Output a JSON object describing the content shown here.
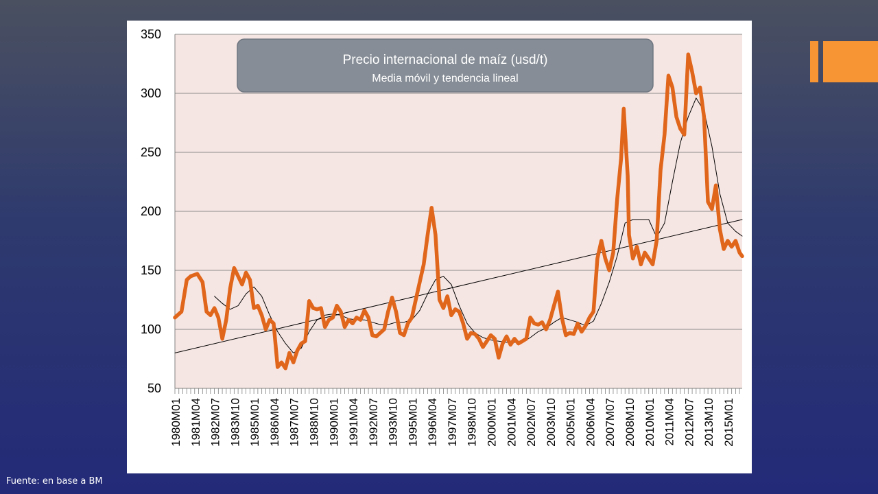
{
  "slide": {
    "source_note": "Fuente: en base a BM",
    "accent_color": "#f79433"
  },
  "chart_data": {
    "type": "line",
    "title": "Precio internacional de maíz (usd/t)",
    "subtitle": "Media móvil y tendencia lineal",
    "ylim": [
      50,
      350
    ],
    "yticks": [
      50,
      100,
      150,
      200,
      250,
      300,
      350
    ],
    "grid": true,
    "colors": {
      "price": "#e0661c",
      "moving_average": "#000000",
      "trend": "#000000",
      "plot_bg": "#f6e6e3"
    },
    "x_tick_labels": [
      "1980M01",
      "1981M04",
      "1982M07",
      "1983M10",
      "1985M01",
      "1986M04",
      "1987M07",
      "1988M10",
      "1990M01",
      "1991M04",
      "1992M07",
      "1993M10",
      "1995M01",
      "1996M04",
      "1997M07",
      "1998M10",
      "2000M01",
      "2001M04",
      "2002M07",
      "2003M10",
      "2005M01",
      "2006M04",
      "2007M07",
      "2008M10",
      "2010M01",
      "2011M04",
      "2012M07",
      "2013M10",
      "2015M01"
    ],
    "x_range": [
      "1980M01",
      "2015M12"
    ],
    "series": [
      {
        "key": "price",
        "points": [
          [
            "1980M01",
            110
          ],
          [
            "1980M06",
            115
          ],
          [
            "1980M10",
            142
          ],
          [
            "1981M01",
            145
          ],
          [
            "1981M06",
            147
          ],
          [
            "1981M10",
            140
          ],
          [
            "1982M01",
            115
          ],
          [
            "1982M04",
            112
          ],
          [
            "1982M07",
            118
          ],
          [
            "1982M10",
            110
          ],
          [
            "1983M01",
            92
          ],
          [
            "1983M04",
            108
          ],
          [
            "1983M07",
            135
          ],
          [
            "1983M10",
            152
          ],
          [
            "1984M01",
            145
          ],
          [
            "1984M04",
            138
          ],
          [
            "1984M07",
            148
          ],
          [
            "1984M10",
            142
          ],
          [
            "1985M01",
            118
          ],
          [
            "1985M04",
            120
          ],
          [
            "1985M07",
            112
          ],
          [
            "1985M10",
            100
          ],
          [
            "1986M01",
            108
          ],
          [
            "1986M04",
            105
          ],
          [
            "1986M07",
            68
          ],
          [
            "1986M10",
            72
          ],
          [
            "1987M01",
            67
          ],
          [
            "1987M04",
            80
          ],
          [
            "1987M07",
            72
          ],
          [
            "1987M10",
            82
          ],
          [
            "1988M01",
            88
          ],
          [
            "1988M04",
            90
          ],
          [
            "1988M07",
            124
          ],
          [
            "1988M10",
            118
          ],
          [
            "1989M01",
            117
          ],
          [
            "1989M04",
            118
          ],
          [
            "1989M07",
            102
          ],
          [
            "1989M10",
            108
          ],
          [
            "1990M01",
            110
          ],
          [
            "1990M04",
            120
          ],
          [
            "1990M07",
            115
          ],
          [
            "1990M10",
            102
          ],
          [
            "1991M01",
            108
          ],
          [
            "1991M04",
            105
          ],
          [
            "1991M07",
            110
          ],
          [
            "1991M10",
            108
          ],
          [
            "1992M01",
            116
          ],
          [
            "1992M04",
            110
          ],
          [
            "1992M07",
            95
          ],
          [
            "1992M10",
            94
          ],
          [
            "1993M01",
            97
          ],
          [
            "1993M04",
            100
          ],
          [
            "1993M07",
            115
          ],
          [
            "1993M10",
            127
          ],
          [
            "1994M01",
            115
          ],
          [
            "1994M04",
            97
          ],
          [
            "1994M07",
            95
          ],
          [
            "1994M10",
            105
          ],
          [
            "1995M01",
            110
          ],
          [
            "1995M04",
            125
          ],
          [
            "1995M07",
            140
          ],
          [
            "1995M10",
            155
          ],
          [
            "1996M01",
            180
          ],
          [
            "1996M04",
            203
          ],
          [
            "1996M07",
            180
          ],
          [
            "1996M10",
            125
          ],
          [
            "1997M01",
            118
          ],
          [
            "1997M04",
            128
          ],
          [
            "1997M07",
            112
          ],
          [
            "1997M10",
            117
          ],
          [
            "1998M01",
            115
          ],
          [
            "1998M04",
            105
          ],
          [
            "1998M07",
            92
          ],
          [
            "1998M10",
            97
          ],
          [
            "1999M01",
            96
          ],
          [
            "1999M04",
            92
          ],
          [
            "1999M07",
            85
          ],
          [
            "1999M10",
            90
          ],
          [
            "2000M01",
            95
          ],
          [
            "2000M04",
            92
          ],
          [
            "2000M07",
            76
          ],
          [
            "2000M10",
            88
          ],
          [
            "2001M01",
            94
          ],
          [
            "2001M04",
            87
          ],
          [
            "2001M07",
            92
          ],
          [
            "2001M10",
            88
          ],
          [
            "2002M01",
            90
          ],
          [
            "2002M04",
            92
          ],
          [
            "2002M07",
            110
          ],
          [
            "2002M10",
            105
          ],
          [
            "2003M01",
            104
          ],
          [
            "2003M04",
            106
          ],
          [
            "2003M07",
            100
          ],
          [
            "2003M10",
            108
          ],
          [
            "2004M01",
            120
          ],
          [
            "2004M04",
            132
          ],
          [
            "2004M07",
            110
          ],
          [
            "2004M10",
            95
          ],
          [
            "2005M01",
            97
          ],
          [
            "2005M04",
            96
          ],
          [
            "2005M07",
            105
          ],
          [
            "2005M10",
            98
          ],
          [
            "2006M01",
            103
          ],
          [
            "2006M04",
            110
          ],
          [
            "2006M07",
            115
          ],
          [
            "2006M10",
            160
          ],
          [
            "2007M01",
            175
          ],
          [
            "2007M04",
            160
          ],
          [
            "2007M07",
            150
          ],
          [
            "2007M10",
            165
          ],
          [
            "2008M01",
            210
          ],
          [
            "2008M04",
            245
          ],
          [
            "2008M06",
            287
          ],
          [
            "2008M09",
            230
          ],
          [
            "2008M10",
            180
          ],
          [
            "2009M01",
            160
          ],
          [
            "2009M04",
            170
          ],
          [
            "2009M07",
            155
          ],
          [
            "2009M10",
            165
          ],
          [
            "2010M01",
            160
          ],
          [
            "2010M04",
            155
          ],
          [
            "2010M07",
            175
          ],
          [
            "2010M10",
            235
          ],
          [
            "2011M01",
            265
          ],
          [
            "2011M04",
            315
          ],
          [
            "2011M07",
            305
          ],
          [
            "2011M10",
            280
          ],
          [
            "2012M01",
            270
          ],
          [
            "2012M04",
            265
          ],
          [
            "2012M07",
            333
          ],
          [
            "2012M10",
            318
          ],
          [
            "2013M01",
            300
          ],
          [
            "2013M04",
            305
          ],
          [
            "2013M07",
            280
          ],
          [
            "2013M10",
            208
          ],
          [
            "2014M01",
            202
          ],
          [
            "2014M04",
            222
          ],
          [
            "2014M07",
            185
          ],
          [
            "2014M10",
            168
          ],
          [
            "2015M01",
            175
          ],
          [
            "2015M04",
            170
          ],
          [
            "2015M07",
            175
          ],
          [
            "2015M10",
            165
          ],
          [
            "2015M12",
            162
          ]
        ]
      },
      {
        "key": "moving_average",
        "points": [
          [
            "1982M07",
            128
          ],
          [
            "1983M01",
            122
          ],
          [
            "1983M07",
            117
          ],
          [
            "1984M01",
            120
          ],
          [
            "1984M07",
            130
          ],
          [
            "1985M01",
            136
          ],
          [
            "1985M07",
            128
          ],
          [
            "1986M01",
            112
          ],
          [
            "1986M07",
            98
          ],
          [
            "1987M01",
            88
          ],
          [
            "1987M07",
            80
          ],
          [
            "1988M01",
            84
          ],
          [
            "1988M07",
            98
          ],
          [
            "1989M01",
            108
          ],
          [
            "1989M07",
            112
          ],
          [
            "1990M01",
            113
          ],
          [
            "1990M07",
            112
          ],
          [
            "1991M01",
            109
          ],
          [
            "1991M07",
            108
          ],
          [
            "1992M01",
            108
          ],
          [
            "1992M07",
            106
          ],
          [
            "1993M01",
            104
          ],
          [
            "1993M07",
            104
          ],
          [
            "1994M01",
            106
          ],
          [
            "1994M07",
            106
          ],
          [
            "1995M01",
            108
          ],
          [
            "1995M07",
            116
          ],
          [
            "1996M01",
            130
          ],
          [
            "1996M07",
            142
          ],
          [
            "1997M01",
            145
          ],
          [
            "1997M07",
            138
          ],
          [
            "1998M01",
            120
          ],
          [
            "1998M07",
            105
          ],
          [
            "1999M01",
            97
          ],
          [
            "1999M07",
            93
          ],
          [
            "2000M01",
            91
          ],
          [
            "2000M07",
            90
          ],
          [
            "2001M01",
            89
          ],
          [
            "2001M07",
            89
          ],
          [
            "2002M01",
            89
          ],
          [
            "2002M07",
            93
          ],
          [
            "2003M01",
            98
          ],
          [
            "2003M07",
            101
          ],
          [
            "2004M01",
            106
          ],
          [
            "2004M07",
            110
          ],
          [
            "2005M01",
            108
          ],
          [
            "2005M07",
            106
          ],
          [
            "2006M01",
            103
          ],
          [
            "2006M07",
            107
          ],
          [
            "2007M01",
            122
          ],
          [
            "2007M07",
            140
          ],
          [
            "2008M01",
            162
          ],
          [
            "2008M07",
            190
          ],
          [
            "2009M01",
            193
          ],
          [
            "2009M07",
            193
          ],
          [
            "2010M01",
            193
          ],
          [
            "2010M07",
            178
          ],
          [
            "2011M01",
            190
          ],
          [
            "2011M07",
            225
          ],
          [
            "2012M01",
            258
          ],
          [
            "2012M07",
            280
          ],
          [
            "2013M01",
            296
          ],
          [
            "2013M07",
            285
          ],
          [
            "2014M01",
            255
          ],
          [
            "2014M07",
            215
          ],
          [
            "2015M01",
            190
          ],
          [
            "2015M07",
            183
          ],
          [
            "2015M12",
            179
          ]
        ]
      },
      {
        "key": "trend",
        "points": [
          [
            "1980M01",
            80
          ],
          [
            "2015M12",
            193
          ]
        ]
      }
    ]
  }
}
